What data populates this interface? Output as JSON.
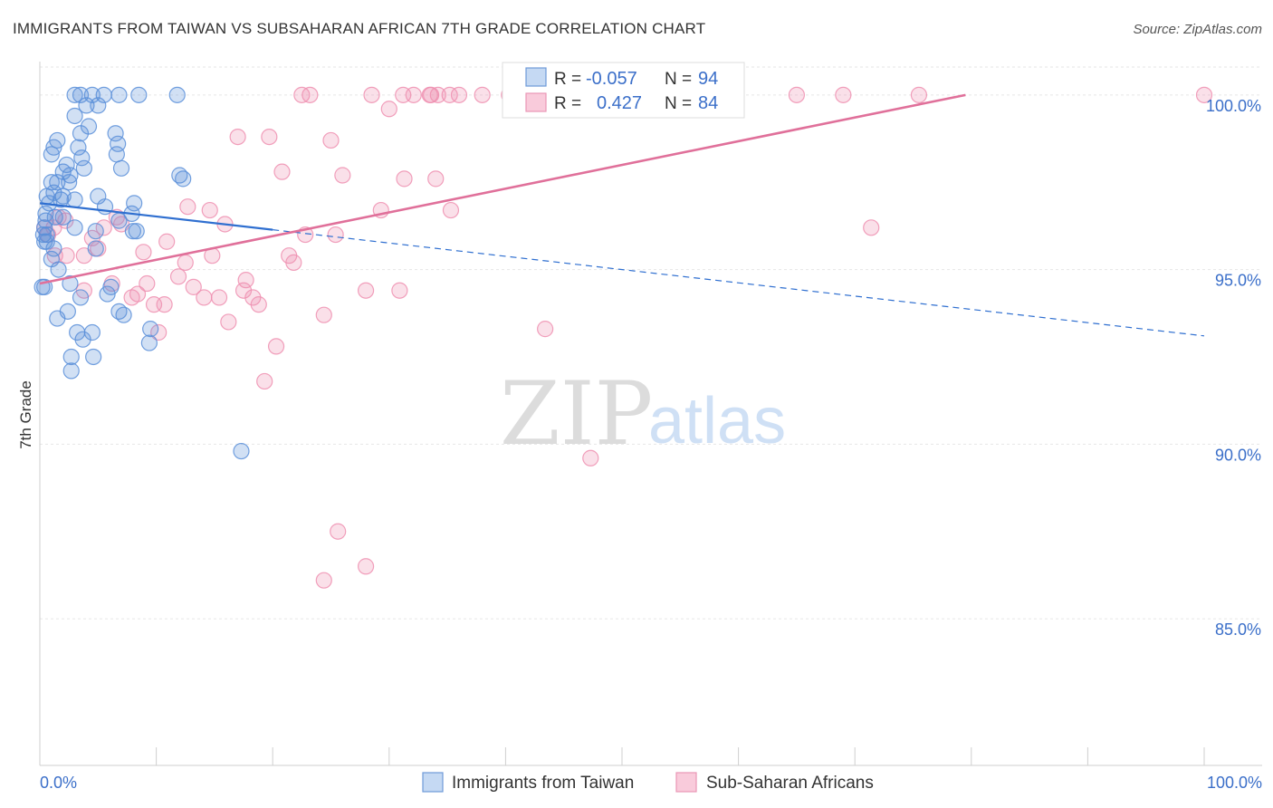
{
  "header": {
    "title": "IMMIGRANTS FROM TAIWAN VS SUBSAHARAN AFRICAN 7TH GRADE CORRELATION CHART",
    "source": "Source: ZipAtlas.com"
  },
  "watermark": {
    "zip": "ZIP",
    "atlas": "atlas"
  },
  "chart_data": {
    "type": "scatter",
    "title": "IMMIGRANTS FROM TAIWAN VS SUBSAHARAN AFRICAN 7TH GRADE CORRELATION CHART",
    "xlabel": "",
    "ylabel": "7th Grade",
    "xlim": [
      0,
      100
    ],
    "ylim": [
      80.8,
      100.8
    ],
    "x_tick_labels": [
      "0.0%",
      "100.0%"
    ],
    "y_ticks": [
      85,
      90,
      95,
      100
    ],
    "y_tick_labels": [
      "85.0%",
      "90.0%",
      "95.0%",
      "100.0%"
    ],
    "grid": true,
    "legend_position": "bottom",
    "colors": {
      "taiwan": "#5b8fd9",
      "subsaharan": "#ee8fb0",
      "taiwan_line": "#2f6fd0",
      "subsaharan_line": "#e0709a"
    },
    "stats": [
      {
        "r_label": "R =",
        "r_value": "-0.057",
        "n_label": "N =",
        "n_value": "94"
      },
      {
        "r_label": "R =",
        "r_value": "0.427",
        "n_label": "N =",
        "n_value": "84"
      }
    ],
    "series": [
      {
        "name": "Immigrants from Taiwan",
        "color": "#5b8fd9",
        "trend": {
          "x": [
            0,
            100
          ],
          "y": [
            96.9,
            93.1
          ],
          "solid_until_x": 20
        },
        "points": [
          [
            3.0,
            100.0
          ],
          [
            3.5,
            100.0
          ],
          [
            4.5,
            100.0
          ],
          [
            5.5,
            100.0
          ],
          [
            6.8,
            100.0
          ],
          [
            8.5,
            100.0
          ],
          [
            11.8,
            100.0
          ],
          [
            4.0,
            99.7
          ],
          [
            5.0,
            99.7
          ],
          [
            3.0,
            99.4
          ],
          [
            4.2,
            99.1
          ],
          [
            3.5,
            98.9
          ],
          [
            1.5,
            98.7
          ],
          [
            6.5,
            98.9
          ],
          [
            6.7,
            98.6
          ],
          [
            1.2,
            98.5
          ],
          [
            3.3,
            98.5
          ],
          [
            6.6,
            98.3
          ],
          [
            1.0,
            98.3
          ],
          [
            3.6,
            98.2
          ],
          [
            2.3,
            98.0
          ],
          [
            3.8,
            97.9
          ],
          [
            7.0,
            97.9
          ],
          [
            2.0,
            97.8
          ],
          [
            2.6,
            97.7
          ],
          [
            1.0,
            97.5
          ],
          [
            1.5,
            97.5
          ],
          [
            2.5,
            97.5
          ],
          [
            12.0,
            97.7
          ],
          [
            12.3,
            97.6
          ],
          [
            1.2,
            97.2
          ],
          [
            2.0,
            97.1
          ],
          [
            0.6,
            97.1
          ],
          [
            1.8,
            97.0
          ],
          [
            3.0,
            97.0
          ],
          [
            5.0,
            97.1
          ],
          [
            0.8,
            96.9
          ],
          [
            5.6,
            96.8
          ],
          [
            8.1,
            96.9
          ],
          [
            0.5,
            96.6
          ],
          [
            1.3,
            96.5
          ],
          [
            2.0,
            96.5
          ],
          [
            7.9,
            96.6
          ],
          [
            0.5,
            96.4
          ],
          [
            6.8,
            96.4
          ],
          [
            0.4,
            96.2
          ],
          [
            0.3,
            96.0
          ],
          [
            0.6,
            96.0
          ],
          [
            3.0,
            96.2
          ],
          [
            4.8,
            96.1
          ],
          [
            8.0,
            96.1
          ],
          [
            8.3,
            96.1
          ],
          [
            0.4,
            95.8
          ],
          [
            0.6,
            95.8
          ],
          [
            1.2,
            95.6
          ],
          [
            4.8,
            95.6
          ],
          [
            1.0,
            95.3
          ],
          [
            1.6,
            95.0
          ],
          [
            2.6,
            94.6
          ],
          [
            0.2,
            94.5
          ],
          [
            0.4,
            94.5
          ],
          [
            6.1,
            94.5
          ],
          [
            5.8,
            94.3
          ],
          [
            3.5,
            94.2
          ],
          [
            6.8,
            93.8
          ],
          [
            2.4,
            93.8
          ],
          [
            1.5,
            93.6
          ],
          [
            7.2,
            93.7
          ],
          [
            9.5,
            93.3
          ],
          [
            3.2,
            93.2
          ],
          [
            4.5,
            93.2
          ],
          [
            3.7,
            93.0
          ],
          [
            9.4,
            92.9
          ],
          [
            2.7,
            92.5
          ],
          [
            4.6,
            92.5
          ],
          [
            2.7,
            92.1
          ],
          [
            17.3,
            89.8
          ]
        ]
      },
      {
        "name": "Sub-Saharan Africans",
        "color": "#ee8fb0",
        "trend": {
          "x": [
            0,
            79.5
          ],
          "y": [
            94.6,
            100.0
          ]
        },
        "points": [
          [
            22.5,
            100.0
          ],
          [
            23.2,
            100.0
          ],
          [
            28.5,
            100.0
          ],
          [
            31.2,
            100.0
          ],
          [
            32.1,
            100.0
          ],
          [
            33.5,
            100.0
          ],
          [
            33.6,
            100.0
          ],
          [
            34.2,
            100.0
          ],
          [
            35.2,
            100.0
          ],
          [
            36.0,
            100.0
          ],
          [
            38.0,
            100.0
          ],
          [
            40.3,
            100.0
          ],
          [
            42.3,
            100.0
          ],
          [
            45.5,
            100.0
          ],
          [
            51.0,
            100.0
          ],
          [
            55.7,
            100.0
          ],
          [
            65.0,
            100.0
          ],
          [
            69.0,
            100.0
          ],
          [
            75.5,
            100.0
          ],
          [
            100.0,
            100.0
          ],
          [
            30.0,
            99.6
          ],
          [
            17.0,
            98.8
          ],
          [
            19.7,
            98.8
          ],
          [
            25.0,
            98.7
          ],
          [
            20.8,
            97.8
          ],
          [
            26.0,
            97.7
          ],
          [
            31.3,
            97.6
          ],
          [
            34.0,
            97.6
          ],
          [
            12.7,
            96.8
          ],
          [
            14.6,
            96.7
          ],
          [
            29.3,
            96.7
          ],
          [
            35.3,
            96.7
          ],
          [
            1.6,
            96.5
          ],
          [
            6.6,
            96.5
          ],
          [
            2.2,
            96.4
          ],
          [
            7.0,
            96.3
          ],
          [
            15.9,
            96.3
          ],
          [
            0.4,
            96.2
          ],
          [
            1.2,
            96.2
          ],
          [
            5.5,
            96.2
          ],
          [
            71.4,
            96.2
          ],
          [
            22.8,
            96.0
          ],
          [
            25.4,
            96.0
          ],
          [
            0.7,
            96.0
          ],
          [
            4.5,
            95.9
          ],
          [
            10.9,
            95.8
          ],
          [
            5.0,
            95.6
          ],
          [
            8.9,
            95.5
          ],
          [
            2.3,
            95.4
          ],
          [
            1.3,
            95.4
          ],
          [
            3.8,
            95.4
          ],
          [
            14.8,
            95.4
          ],
          [
            21.4,
            95.4
          ],
          [
            21.8,
            95.2
          ],
          [
            12.5,
            95.2
          ],
          [
            11.9,
            94.8
          ],
          [
            17.7,
            94.7
          ],
          [
            6.2,
            94.6
          ],
          [
            9.2,
            94.6
          ],
          [
            13.2,
            94.5
          ],
          [
            3.8,
            94.4
          ],
          [
            17.5,
            94.4
          ],
          [
            28.0,
            94.4
          ],
          [
            30.9,
            94.4
          ],
          [
            8.4,
            94.3
          ],
          [
            7.9,
            94.2
          ],
          [
            14.1,
            94.2
          ],
          [
            15.4,
            94.2
          ],
          [
            18.3,
            94.2
          ],
          [
            9.8,
            94.0
          ],
          [
            10.7,
            94.0
          ],
          [
            18.8,
            94.0
          ],
          [
            24.4,
            93.7
          ],
          [
            16.2,
            93.5
          ],
          [
            43.4,
            93.3
          ],
          [
            10.2,
            93.2
          ],
          [
            20.3,
            92.8
          ],
          [
            19.3,
            91.8
          ],
          [
            47.3,
            89.6
          ],
          [
            25.6,
            87.5
          ],
          [
            28.0,
            86.5
          ],
          [
            24.4,
            86.1
          ]
        ]
      }
    ]
  }
}
